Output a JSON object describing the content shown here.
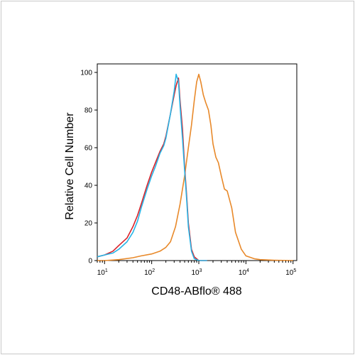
{
  "chart_data": {
    "type": "line",
    "title": "",
    "xlabel": "CD48-ABflo® 488",
    "ylabel": "Relative Cell Number",
    "x_scale": "log",
    "xlim": [
      7,
      120000
    ],
    "ylim": [
      0,
      100
    ],
    "yticks": [
      0,
      20,
      40,
      60,
      80,
      100
    ],
    "xticks": [
      {
        "base": "10",
        "exp": "1",
        "value": 10
      },
      {
        "base": "10",
        "exp": "2",
        "value": 100
      },
      {
        "base": "10",
        "exp": "3",
        "value": 1000
      },
      {
        "base": "10",
        "exp": "4",
        "value": 10000
      },
      {
        "base": "10",
        "exp": "5",
        "value": 100000
      }
    ],
    "grid": false,
    "legend": "none",
    "series": [
      {
        "color": "#e8892a",
        "x": [
          7,
          10,
          20,
          40,
          60,
          100,
          150,
          200,
          250,
          320,
          400,
          500,
          600,
          700,
          800,
          900,
          1000,
          1100,
          1250,
          1400,
          1600,
          1800,
          2000,
          2300,
          2600,
          3000,
          3500,
          4000,
          5000,
          6000,
          8000,
          10000,
          15000,
          20000,
          40000,
          100000
        ],
        "y": [
          0,
          0,
          0.5,
          1.5,
          2.5,
          3.5,
          5,
          7,
          10,
          18,
          30,
          45,
          60,
          72,
          85,
          95,
          99,
          95,
          88,
          84,
          80,
          72,
          62,
          55,
          52,
          45,
          38,
          37,
          28,
          15,
          6,
          2.5,
          1,
          0.5,
          0.2,
          0
        ]
      },
      {
        "color": "#d9222a",
        "x": [
          7,
          10,
          15,
          20,
          30,
          40,
          50,
          60,
          80,
          100,
          120,
          150,
          180,
          200,
          250,
          300,
          330,
          370,
          400,
          450,
          500,
          550,
          600,
          700,
          800,
          1000,
          1500
        ],
        "y": [
          2,
          3,
          5,
          8,
          12,
          18,
          24,
          30,
          40,
          47,
          52,
          58,
          62,
          66,
          78,
          88,
          93,
          97,
          85,
          70,
          50,
          35,
          20,
          6,
          2,
          0,
          0
        ]
      },
      {
        "color": "#28b4e6",
        "x": [
          7,
          10,
          15,
          20,
          30,
          40,
          50,
          60,
          80,
          100,
          120,
          150,
          180,
          200,
          250,
          300,
          330,
          370,
          400,
          450,
          500,
          550,
          600,
          700,
          800,
          1000,
          1500
        ],
        "y": [
          2,
          3,
          4,
          6,
          10,
          15,
          21,
          28,
          38,
          45,
          50,
          57,
          61,
          65,
          78,
          90,
          99,
          95,
          82,
          65,
          48,
          33,
          18,
          5,
          1,
          0,
          0
        ]
      }
    ]
  }
}
